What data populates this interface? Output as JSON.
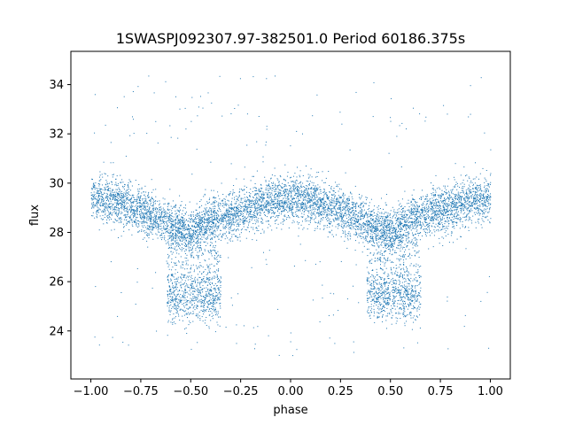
{
  "chart_data": {
    "type": "scatter",
    "title": "1SWASPJ092307.97-382501.0 Period 60186.375s",
    "xlabel": "phase",
    "ylabel": "flux",
    "xlim": [
      -1.1,
      1.1
    ],
    "ylim": [
      22.05,
      35.35
    ],
    "x_ticks": [
      -1.0,
      -0.75,
      -0.5,
      -0.25,
      0.0,
      0.25,
      0.5,
      0.75,
      1.0
    ],
    "x_tick_labels": [
      "−1.00",
      "−0.75",
      "−0.50",
      "−0.25",
      "0.00",
      "0.25",
      "0.50",
      "0.75",
      "1.00"
    ],
    "y_ticks": [
      24,
      26,
      28,
      30,
      32,
      34
    ],
    "y_tick_labels": [
      "24",
      "26",
      "28",
      "30",
      "32",
      "34"
    ],
    "grid": false,
    "legend": "none",
    "marker_color": "#1f77b4",
    "series": [
      {
        "phase_range": [
          -1.0,
          1.0
        ],
        "trend_x": [
          -1.0,
          -0.9,
          -0.75,
          -0.6,
          -0.5,
          -0.4,
          -0.25,
          -0.1,
          0.0,
          0.1,
          0.25,
          0.4,
          0.5,
          0.6,
          0.75,
          0.9,
          1.0
        ],
        "trend_y": [
          29.4,
          29.3,
          28.9,
          28.3,
          28.0,
          28.5,
          28.9,
          29.3,
          29.4,
          29.3,
          28.9,
          28.3,
          28.0,
          28.5,
          28.9,
          29.3,
          29.4
        ],
        "dip_cluster_y_range": [
          24.8,
          26.0
        ],
        "dip_cluster_phase_ranges": [
          [
            -0.62,
            -0.35
          ],
          [
            0.38,
            0.65
          ]
        ]
      }
    ]
  }
}
